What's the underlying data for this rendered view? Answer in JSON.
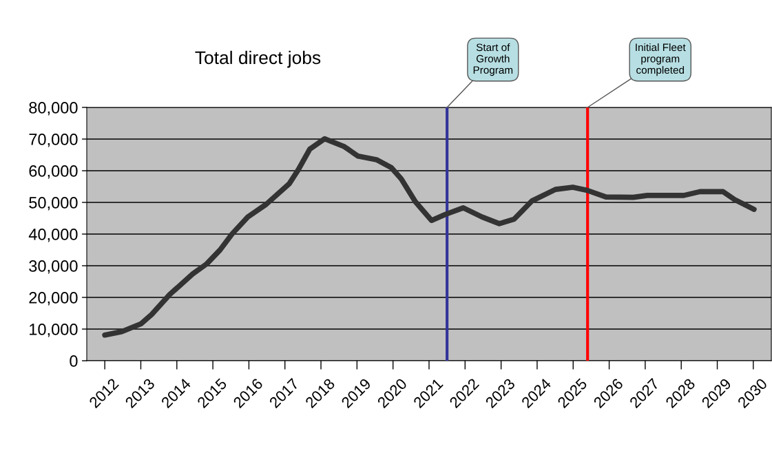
{
  "chart_data": {
    "type": "line",
    "title": "Total direct jobs",
    "x": [
      2012.0,
      2012.47,
      2013.01,
      2013.3,
      2013.8,
      2014.44,
      2014.83,
      2015.2,
      2015.53,
      2015.97,
      2016.48,
      2017.12,
      2017.37,
      2017.69,
      2018.1,
      2018.65,
      2019.03,
      2019.54,
      2019.95,
      2020.23,
      2020.62,
      2021.07,
      2021.45,
      2021.95,
      2022.47,
      2022.95,
      2023.36,
      2023.86,
      2024.51,
      2024.99,
      2025.39,
      2025.91,
      2026.67,
      2027.06,
      2028.07,
      2028.52,
      2029.16,
      2029.48,
      2030.02
    ],
    "series": [
      {
        "color": "#333333",
        "values": [
          8100,
          9200,
          11700,
          14600,
          20900,
          27400,
          30600,
          35000,
          40000,
          45400,
          49400,
          55900,
          60300,
          66800,
          70100,
          67600,
          64600,
          63500,
          61000,
          57400,
          50200,
          44300,
          46200,
          48300,
          45400,
          43300,
          44700,
          50500,
          54100,
          54800,
          53800,
          51700,
          51600,
          52200,
          52200,
          53400,
          53400,
          50900,
          47800
        ]
      }
    ],
    "xlim": [
      2011.5,
      2030.5
    ],
    "xticks": [
      2012,
      2013,
      2014,
      2015,
      2016,
      2017,
      2018,
      2019,
      2020,
      2021,
      2022,
      2023,
      2024,
      2025,
      2026,
      2027,
      2028,
      2029,
      2030
    ],
    "ylim": [
      0,
      80000
    ],
    "yticks": [
      0,
      {
        "value": 10000,
        "label": "10,000"
      },
      {
        "value": 20000,
        "label": "20,000"
      },
      {
        "value": 30000,
        "label": "30,000"
      },
      {
        "value": 40000,
        "label": "40,000"
      },
      {
        "value": 50000,
        "label": "50,000"
      },
      {
        "value": 60000,
        "label": "60,000"
      },
      {
        "value": 70000,
        "label": "70,000"
      },
      {
        "value": 80000,
        "label": "80,000"
      }
    ],
    "ref_lines": [
      {
        "axis": "x",
        "value": 2021.5,
        "label": "Start of\nGrowth\nProgram",
        "color": "#333399"
      },
      {
        "axis": "x",
        "value": 2025.4,
        "label": "Initial Fleet\nprogram\ncompleted",
        "color": "#ff0000"
      }
    ],
    "grid": "y",
    "legend": false,
    "marker": "none",
    "line_style": "solid"
  }
}
